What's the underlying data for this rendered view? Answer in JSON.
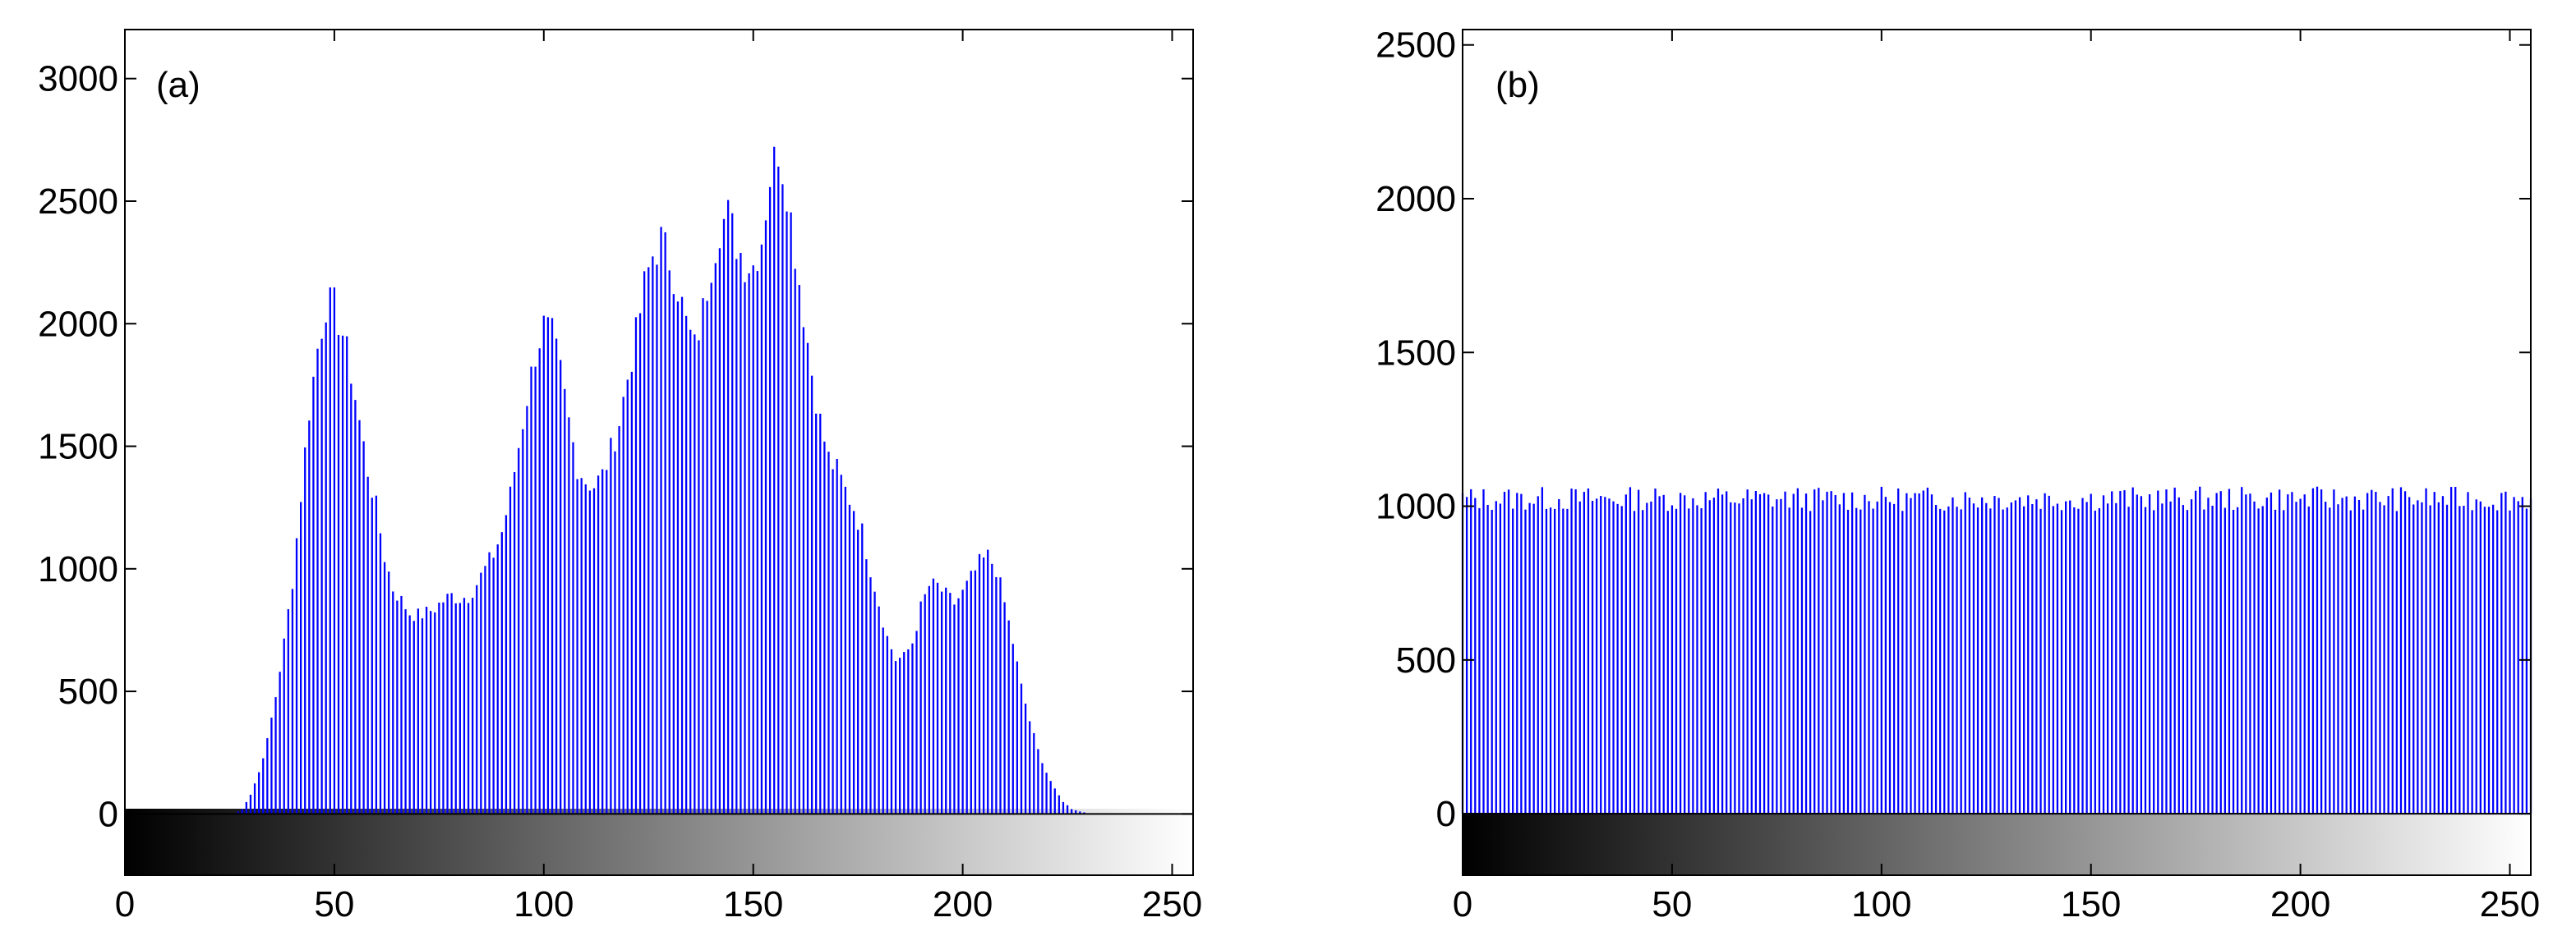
{
  "colors": {
    "bar": "#0000ff",
    "axis": "#000000",
    "background": "#ffffff"
  },
  "chart_data": [
    {
      "type": "bar",
      "panel_label": "(a)",
      "xlim": [
        0,
        255
      ],
      "ylim": [
        -250,
        3200
      ],
      "x_ticks": [
        "0",
        "50",
        "100",
        "150",
        "200",
        "250"
      ],
      "y_ticks": [
        "0",
        "500",
        "1000",
        "1500",
        "2000",
        "2500",
        "3000"
      ],
      "colorbar": "grayscale 0 (black) to 255 (white)",
      "control_points": [
        [
          0,
          0
        ],
        [
          26,
          0
        ],
        [
          28,
          20
        ],
        [
          30,
          80
        ],
        [
          32,
          170
        ],
        [
          34,
          300
        ],
        [
          36,
          480
        ],
        [
          38,
          700
        ],
        [
          40,
          950
        ],
        [
          42,
          1300
        ],
        [
          44,
          1650
        ],
        [
          46,
          1900
        ],
        [
          48,
          2080
        ],
        [
          50,
          2070
        ],
        [
          52,
          1960
        ],
        [
          54,
          1800
        ],
        [
          56,
          1600
        ],
        [
          58,
          1400
        ],
        [
          60,
          1250
        ],
        [
          62,
          1050
        ],
        [
          64,
          920
        ],
        [
          66,
          870
        ],
        [
          68,
          820
        ],
        [
          70,
          810
        ],
        [
          72,
          820
        ],
        [
          74,
          840
        ],
        [
          76,
          870
        ],
        [
          78,
          890
        ],
        [
          80,
          880
        ],
        [
          82,
          890
        ],
        [
          84,
          940
        ],
        [
          86,
          1000
        ],
        [
          88,
          1060
        ],
        [
          90,
          1150
        ],
        [
          92,
          1300
        ],
        [
          94,
          1500
        ],
        [
          96,
          1700
        ],
        [
          98,
          1880
        ],
        [
          100,
          1990
        ],
        [
          102,
          1950
        ],
        [
          104,
          1800
        ],
        [
          106,
          1600
        ],
        [
          108,
          1420
        ],
        [
          110,
          1360
        ],
        [
          112,
          1340
        ],
        [
          114,
          1380
        ],
        [
          116,
          1480
        ],
        [
          118,
          1600
        ],
        [
          120,
          1780
        ],
        [
          122,
          1950
        ],
        [
          124,
          2150
        ],
        [
          126,
          2280
        ],
        [
          128,
          2340
        ],
        [
          130,
          2260
        ],
        [
          132,
          2150
        ],
        [
          134,
          2000
        ],
        [
          136,
          1900
        ],
        [
          138,
          2050
        ],
        [
          140,
          2250
        ],
        [
          142,
          2400
        ],
        [
          144,
          2440
        ],
        [
          146,
          2330
        ],
        [
          148,
          2250
        ],
        [
          150,
          2240
        ],
        [
          152,
          2350
        ],
        [
          154,
          2600
        ],
        [
          156,
          2720
        ],
        [
          158,
          2560
        ],
        [
          160,
          2300
        ],
        [
          162,
          2050
        ],
        [
          164,
          1800
        ],
        [
          166,
          1600
        ],
        [
          168,
          1450
        ],
        [
          170,
          1400
        ],
        [
          172,
          1320
        ],
        [
          174,
          1250
        ],
        [
          176,
          1150
        ],
        [
          178,
          1000
        ],
        [
          180,
          860
        ],
        [
          182,
          720
        ],
        [
          184,
          630
        ],
        [
          186,
          640
        ],
        [
          188,
          700
        ],
        [
          190,
          840
        ],
        [
          192,
          930
        ],
        [
          194,
          930
        ],
        [
          196,
          890
        ],
        [
          198,
          860
        ],
        [
          200,
          900
        ],
        [
          202,
          960
        ],
        [
          204,
          1020
        ],
        [
          206,
          1050
        ],
        [
          208,
          1000
        ],
        [
          210,
          860
        ],
        [
          212,
          700
        ],
        [
          214,
          520
        ],
        [
          216,
          380
        ],
        [
          218,
          260
        ],
        [
          220,
          170
        ],
        [
          222,
          100
        ],
        [
          224,
          50
        ],
        [
          226,
          20
        ],
        [
          228,
          10
        ],
        [
          230,
          3
        ],
        [
          232,
          0
        ],
        [
          255,
          0
        ]
      ],
      "title": "",
      "xlabel": "",
      "ylabel": ""
    },
    {
      "type": "bar",
      "panel_label": "(b)",
      "xlim": [
        0,
        255
      ],
      "ylim": [
        -200,
        2550
      ],
      "x_ticks": [
        "0",
        "50",
        "100",
        "150",
        "200",
        "250"
      ],
      "y_ticks": [
        "0",
        "500",
        "1000",
        "1500",
        "2000",
        "2500"
      ],
      "colorbar": "grayscale 0 (black) to 255 (white)",
      "mean_count": 1020,
      "spread": 40,
      "title": "",
      "xlabel": "",
      "ylabel": ""
    }
  ]
}
